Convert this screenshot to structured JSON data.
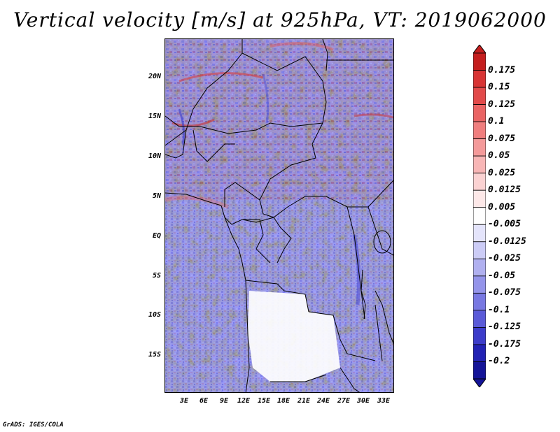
{
  "title": "Vertical velocity [m/s] at 925hPa, VT: 2019062000",
  "lat_labels": [
    "20N",
    "15N",
    "10N",
    "5N",
    "EQ",
    "5S",
    "10S",
    "15S"
  ],
  "lon_labels": [
    "3E",
    "6E",
    "9E",
    "12E",
    "15E",
    "18E",
    "21E",
    "24E",
    "27E",
    "30E",
    "33E"
  ],
  "colorbar": {
    "labels": [
      "0.175",
      "0.15",
      "0.125",
      "0.1",
      "0.075",
      "0.05",
      "0.025",
      "0.0125",
      "0.005",
      "-0.005",
      "-0.0125",
      "-0.025",
      "-0.05",
      "-0.075",
      "-0.1",
      "-0.125",
      "-0.175",
      "-0.2"
    ],
    "colors": [
      "#c41e1e",
      "#d83434",
      "#e24a4a",
      "#ea6464",
      "#f07e7e",
      "#f49a9a",
      "#f8b6b6",
      "#fbd2d2",
      "#fde8e8",
      "#ffffff",
      "#e4e4fb",
      "#ccccf6",
      "#b0b0f0",
      "#9494ea",
      "#7878e2",
      "#5a5ad8",
      "#3c3cca",
      "#2222b4",
      "#141498"
    ]
  },
  "credit": "GrADS: IGES/COLA"
}
